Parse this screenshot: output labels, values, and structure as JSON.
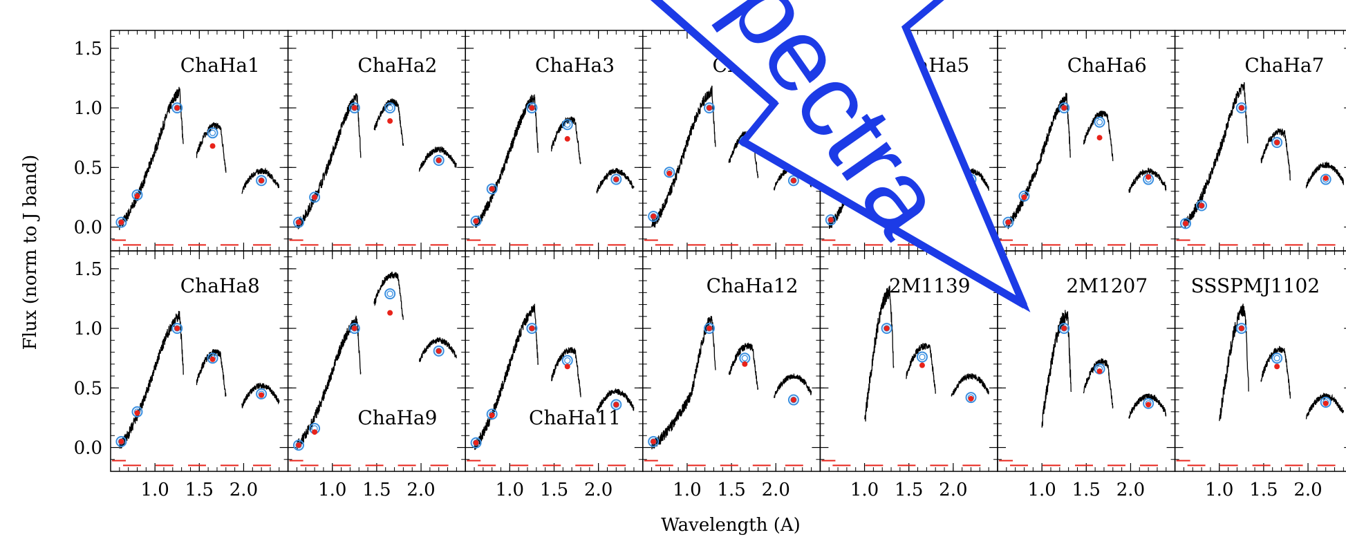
{
  "chart_data": {
    "type": "line",
    "xlabel": "Wavelength (A)",
    "ylabel": "Flux (norm to J band)",
    "xlim": [
      0.5,
      2.5
    ],
    "ylim": [
      -0.2,
      1.65
    ],
    "x_ticks": [
      "1.0",
      "1.5",
      "2.0"
    ],
    "y_ticks": [
      "0.0",
      "0.5",
      "1.0",
      "1.5"
    ],
    "layout": {
      "rows": 2,
      "cols": 7
    },
    "annotation": {
      "text": "Spectra",
      "color": "#1c3be6",
      "direction": "pointing down-right to 2M1207"
    },
    "colors": {
      "spectrum": "#000000",
      "model_point": "#e8231a",
      "photometry_circle": "#3a8fe0",
      "reference_line": "#e8231a"
    },
    "panels": [
      {
        "name": "ChaHa1",
        "label_pos": "top",
        "photometry": [
          {
            "x": 0.62,
            "y": 0.04
          },
          {
            "x": 0.8,
            "y": 0.27
          },
          {
            "x": 1.25,
            "y": 1.0
          },
          {
            "x": 1.65,
            "y": 0.79
          },
          {
            "x": 2.2,
            "y": 0.39
          }
        ],
        "model": [
          {
            "x": 0.62,
            "y": 0.04
          },
          {
            "x": 0.8,
            "y": 0.26
          },
          {
            "x": 1.25,
            "y": 1.0
          },
          {
            "x": 1.65,
            "y": 0.68
          },
          {
            "x": 2.2,
            "y": 0.39
          }
        ],
        "peaks": {
          "z": 0.5,
          "j": 1.15,
          "h": 0.85,
          "k": 0.42
        }
      },
      {
        "name": "ChaHa2",
        "label_pos": "top",
        "photometry": [
          {
            "x": 0.62,
            "y": 0.04
          },
          {
            "x": 0.8,
            "y": 0.25
          },
          {
            "x": 1.25,
            "y": 1.0
          },
          {
            "x": 1.65,
            "y": 1.0
          },
          {
            "x": 2.2,
            "y": 0.56
          }
        ],
        "model": [
          {
            "x": 0.62,
            "y": 0.04
          },
          {
            "x": 0.8,
            "y": 0.25
          },
          {
            "x": 1.25,
            "y": 1.0
          },
          {
            "x": 1.65,
            "y": 0.89
          },
          {
            "x": 2.2,
            "y": 0.56
          }
        ],
        "peaks": {
          "z": 0.48,
          "j": 1.1,
          "h": 1.05,
          "k": 0.6
        }
      },
      {
        "name": "ChaHa3",
        "label_pos": "top",
        "photometry": [
          {
            "x": 0.62,
            "y": 0.05
          },
          {
            "x": 0.8,
            "y": 0.32
          },
          {
            "x": 1.25,
            "y": 1.0
          },
          {
            "x": 1.65,
            "y": 0.86
          },
          {
            "x": 2.2,
            "y": 0.4
          }
        ],
        "model": [
          {
            "x": 0.62,
            "y": 0.05
          },
          {
            "x": 0.8,
            "y": 0.32
          },
          {
            "x": 1.25,
            "y": 1.0
          },
          {
            "x": 1.65,
            "y": 0.74
          },
          {
            "x": 2.2,
            "y": 0.4
          }
        ],
        "peaks": {
          "z": 0.5,
          "j": 1.1,
          "h": 0.9,
          "k": 0.42
        }
      },
      {
        "name": "ChaHa4",
        "label_pos": "top",
        "photometry": [
          {
            "x": 0.62,
            "y": 0.09
          },
          {
            "x": 0.8,
            "y": 0.46
          },
          {
            "x": 1.25,
            "y": 1.0
          },
          {
            "x": 1.65,
            "y": 0.72
          },
          {
            "x": 2.2,
            "y": 0.39
          }
        ],
        "model": [
          {
            "x": 0.62,
            "y": 0.09
          },
          {
            "x": 0.8,
            "y": 0.45
          },
          {
            "x": 1.25,
            "y": 1.0
          },
          {
            "x": 1.65,
            "y": 0.72
          },
          {
            "x": 2.2,
            "y": 0.39
          }
        ],
        "peaks": {
          "z": 0.55,
          "j": 1.15,
          "h": 0.78,
          "k": 0.45
        }
      },
      {
        "name": "ChaHa5",
        "label_pos": "top",
        "photometry": [
          {
            "x": 0.62,
            "y": 0.06
          },
          {
            "x": 0.8,
            "y": 0.3
          },
          {
            "x": 1.25,
            "y": 1.0
          },
          {
            "x": 1.65,
            "y": 0.75
          },
          {
            "x": 2.2,
            "y": 0.4
          }
        ],
        "model": [
          {
            "x": 0.62,
            "y": 0.06
          },
          {
            "x": 0.8,
            "y": 0.3
          },
          {
            "x": 1.25,
            "y": 1.0
          },
          {
            "x": 1.65,
            "y": 0.72
          },
          {
            "x": 2.2,
            "y": 0.4
          }
        ],
        "peaks": {
          "z": 0.5,
          "j": 1.1,
          "h": 0.8,
          "k": 0.42
        }
      },
      {
        "name": "ChaHa6",
        "label_pos": "top",
        "photometry": [
          {
            "x": 0.62,
            "y": 0.04
          },
          {
            "x": 0.8,
            "y": 0.26
          },
          {
            "x": 1.25,
            "y": 1.0
          },
          {
            "x": 1.65,
            "y": 0.88
          },
          {
            "x": 2.2,
            "y": 0.4
          }
        ],
        "model": [
          {
            "x": 0.62,
            "y": 0.04
          },
          {
            "x": 0.8,
            "y": 0.25
          },
          {
            "x": 1.25,
            "y": 1.0
          },
          {
            "x": 1.65,
            "y": 0.75
          },
          {
            "x": 2.2,
            "y": 0.42
          }
        ],
        "peaks": {
          "z": 0.48,
          "j": 1.1,
          "h": 0.95,
          "k": 0.42
        }
      },
      {
        "name": "ChaHa7",
        "label_pos": "top",
        "photometry": [
          {
            "x": 0.62,
            "y": 0.03
          },
          {
            "x": 0.8,
            "y": 0.18
          },
          {
            "x": 1.25,
            "y": 1.0
          },
          {
            "x": 1.65,
            "y": 0.71
          },
          {
            "x": 2.2,
            "y": 0.4
          }
        ],
        "model": [
          {
            "x": 0.62,
            "y": 0.03
          },
          {
            "x": 0.8,
            "y": 0.18
          },
          {
            "x": 1.25,
            "y": 1.0
          },
          {
            "x": 1.65,
            "y": 0.71
          },
          {
            "x": 2.2,
            "y": 0.41
          }
        ],
        "peaks": {
          "z": 0.5,
          "j": 1.2,
          "h": 0.8,
          "k": 0.47
        }
      },
      {
        "name": "ChaHa8",
        "label_pos": "top",
        "photometry": [
          {
            "x": 0.62,
            "y": 0.05
          },
          {
            "x": 0.8,
            "y": 0.3
          },
          {
            "x": 1.25,
            "y": 1.0
          },
          {
            "x": 1.65,
            "y": 0.75
          },
          {
            "x": 2.2,
            "y": 0.45
          }
        ],
        "model": [
          {
            "x": 0.62,
            "y": 0.05
          },
          {
            "x": 0.8,
            "y": 0.29
          },
          {
            "x": 1.25,
            "y": 1.0
          },
          {
            "x": 1.65,
            "y": 0.74
          },
          {
            "x": 2.2,
            "y": 0.44
          }
        ],
        "peaks": {
          "z": 0.52,
          "j": 1.12,
          "h": 0.8,
          "k": 0.47
        }
      },
      {
        "name": "ChaHa9",
        "label_pos": "bottom",
        "photometry": [
          {
            "x": 0.62,
            "y": 0.02
          },
          {
            "x": 0.8,
            "y": 0.16
          },
          {
            "x": 1.25,
            "y": 1.0
          },
          {
            "x": 1.65,
            "y": 1.29
          },
          {
            "x": 2.2,
            "y": 0.81
          }
        ],
        "model": [
          {
            "x": 0.62,
            "y": 0.02
          },
          {
            "x": 0.8,
            "y": 0.13
          },
          {
            "x": 1.25,
            "y": 1.0
          },
          {
            "x": 1.65,
            "y": 1.13
          },
          {
            "x": 2.2,
            "y": 0.81
          }
        ],
        "peaks": {
          "z": 0.5,
          "j": 1.08,
          "h": 1.45,
          "k": 0.85
        }
      },
      {
        "name": "ChaHa11",
        "label_pos": "bottom",
        "photometry": [
          {
            "x": 0.62,
            "y": 0.04
          },
          {
            "x": 0.8,
            "y": 0.28
          },
          {
            "x": 1.25,
            "y": 1.0
          },
          {
            "x": 1.65,
            "y": 0.73
          },
          {
            "x": 2.2,
            "y": 0.36
          }
        ],
        "model": [
          {
            "x": 0.62,
            "y": 0.04
          },
          {
            "x": 0.8,
            "y": 0.27
          },
          {
            "x": 1.25,
            "y": 1.0
          },
          {
            "x": 1.65,
            "y": 0.68
          },
          {
            "x": 2.2,
            "y": 0.36
          }
        ],
        "peaks": {
          "z": 0.55,
          "j": 1.18,
          "h": 0.82,
          "k": 0.42
        }
      },
      {
        "name": "ChaHa12",
        "label_pos": "top",
        "photometry": [
          {
            "x": 0.62,
            "y": 0.05
          },
          {
            "x": 1.25,
            "y": 1.0
          },
          {
            "x": 1.65,
            "y": 0.75
          },
          {
            "x": 2.2,
            "y": 0.4
          }
        ],
        "model": [
          {
            "x": 0.62,
            "y": 0.05
          },
          {
            "x": 1.25,
            "y": 1.0
          },
          {
            "x": 1.65,
            "y": 0.7
          },
          {
            "x": 2.2,
            "y": 0.4
          }
        ],
        "peaks": {
          "z": 0.3,
          "j": 1.12,
          "h": 0.85,
          "k": 0.55
        }
      },
      {
        "name": "2M1139",
        "label_pos": "top",
        "photometry": [
          {
            "x": 1.25,
            "y": 1.0
          },
          {
            "x": 1.65,
            "y": 0.76
          },
          {
            "x": 2.2,
            "y": 0.42
          }
        ],
        "model": [
          {
            "x": 1.25,
            "y": 1.0
          },
          {
            "x": 1.65,
            "y": 0.69
          },
          {
            "x": 2.2,
            "y": 0.41
          }
        ],
        "peaks": {
          "z": 0.0,
          "j": 1.3,
          "h": 0.85,
          "k": 0.55
        }
      },
      {
        "name": "2M1207",
        "label_pos": "top",
        "photometry": [
          {
            "x": 1.25,
            "y": 1.0
          },
          {
            "x": 1.65,
            "y": 0.66
          },
          {
            "x": 2.2,
            "y": 0.37
          }
        ],
        "model": [
          {
            "x": 1.25,
            "y": 1.0
          },
          {
            "x": 1.65,
            "y": 0.64
          },
          {
            "x": 2.2,
            "y": 0.36
          }
        ],
        "peaks": {
          "z": 0.0,
          "j": 1.1,
          "h": 0.72,
          "k": 0.38
        }
      },
      {
        "name": "SSSPMJ1102",
        "label_pos": "top",
        "photometry": [
          {
            "x": 1.25,
            "y": 1.0
          },
          {
            "x": 1.65,
            "y": 0.75
          },
          {
            "x": 2.2,
            "y": 0.38
          }
        ],
        "model": [
          {
            "x": 1.25,
            "y": 1.0
          },
          {
            "x": 1.65,
            "y": 0.68
          },
          {
            "x": 2.2,
            "y": 0.37
          }
        ],
        "peaks": {
          "z": 0.0,
          "j": 1.15,
          "h": 0.82,
          "k": 0.38
        }
      }
    ]
  }
}
